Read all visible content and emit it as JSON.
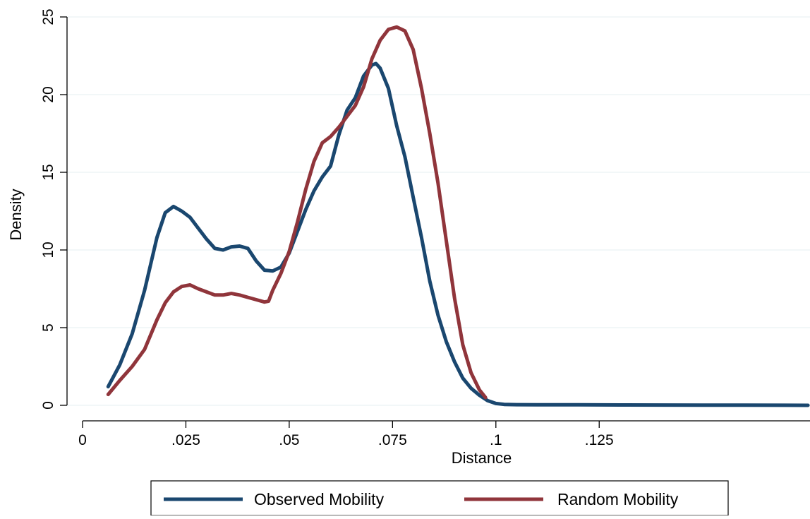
{
  "chart_data": {
    "type": "line",
    "title": "",
    "xlabel": "Distance",
    "ylabel": "Density",
    "xlim": [
      0,
      0.176
    ],
    "ylim": [
      0,
      25
    ],
    "x_ticks": [
      0,
      0.025,
      0.05,
      0.075,
      0.1,
      0.125
    ],
    "x_tick_labels": [
      "0",
      ".025",
      ".05",
      ".075",
      ".1",
      ".125"
    ],
    "y_ticks": [
      0,
      5,
      10,
      15,
      20,
      25
    ],
    "y_tick_labels": [
      "0",
      "5",
      "10",
      "15",
      "20",
      "25"
    ],
    "grid": "horizontal",
    "legend": {
      "position": "bottom"
    },
    "series": [
      {
        "name": "Observed Mobility",
        "color": "#1a476f",
        "x": [
          0.0062,
          0.009,
          0.012,
          0.015,
          0.018,
          0.02,
          0.022,
          0.024,
          0.026,
          0.028,
          0.03,
          0.032,
          0.034,
          0.036,
          0.038,
          0.04,
          0.042,
          0.044,
          0.046,
          0.048,
          0.05,
          0.052,
          0.054,
          0.056,
          0.058,
          0.06,
          0.062,
          0.064,
          0.066,
          0.068,
          0.07,
          0.071,
          0.072,
          0.074,
          0.076,
          0.078,
          0.08,
          0.082,
          0.084,
          0.086,
          0.088,
          0.09,
          0.092,
          0.094,
          0.096,
          0.098,
          0.1,
          0.102,
          0.105,
          0.11,
          0.12,
          0.13,
          0.14,
          0.15,
          0.16,
          0.17,
          0.1755
        ],
        "y": [
          1.2,
          2.6,
          4.6,
          7.4,
          10.8,
          12.4,
          12.8,
          12.5,
          12.1,
          11.4,
          10.7,
          10.1,
          10.0,
          10.2,
          10.25,
          10.1,
          9.3,
          8.7,
          8.65,
          8.9,
          9.8,
          11.2,
          12.6,
          13.8,
          14.7,
          15.4,
          17.4,
          19.0,
          19.8,
          21.2,
          21.9,
          22.0,
          21.7,
          20.4,
          18.0,
          16.0,
          13.4,
          10.8,
          8.0,
          5.8,
          4.1,
          2.8,
          1.75,
          1.1,
          0.65,
          0.3,
          0.12,
          0.06,
          0.04,
          0.03,
          0.03,
          0.025,
          0.02,
          0.015,
          0.01,
          0.005,
          0.0
        ]
      },
      {
        "name": "Random Mobility",
        "color": "#90353b",
        "x": [
          0.0062,
          0.009,
          0.012,
          0.015,
          0.018,
          0.02,
          0.022,
          0.024,
          0.026,
          0.028,
          0.03,
          0.032,
          0.034,
          0.036,
          0.038,
          0.04,
          0.042,
          0.044,
          0.045,
          0.046,
          0.048,
          0.05,
          0.052,
          0.054,
          0.056,
          0.058,
          0.06,
          0.062,
          0.064,
          0.066,
          0.068,
          0.07,
          0.072,
          0.074,
          0.076,
          0.078,
          0.08,
          0.082,
          0.084,
          0.086,
          0.088,
          0.09,
          0.092,
          0.094,
          0.096,
          0.0975
        ],
        "y": [
          0.7,
          1.6,
          2.5,
          3.6,
          5.5,
          6.6,
          7.3,
          7.65,
          7.75,
          7.5,
          7.3,
          7.1,
          7.1,
          7.2,
          7.1,
          6.95,
          6.8,
          6.65,
          6.7,
          7.4,
          8.5,
          9.9,
          11.8,
          13.9,
          15.7,
          16.9,
          17.3,
          17.9,
          18.6,
          19.3,
          20.5,
          22.3,
          23.5,
          24.2,
          24.35,
          24.1,
          22.9,
          20.4,
          17.5,
          14.3,
          10.6,
          6.9,
          3.9,
          2.1,
          1.0,
          0.5
        ]
      }
    ]
  }
}
